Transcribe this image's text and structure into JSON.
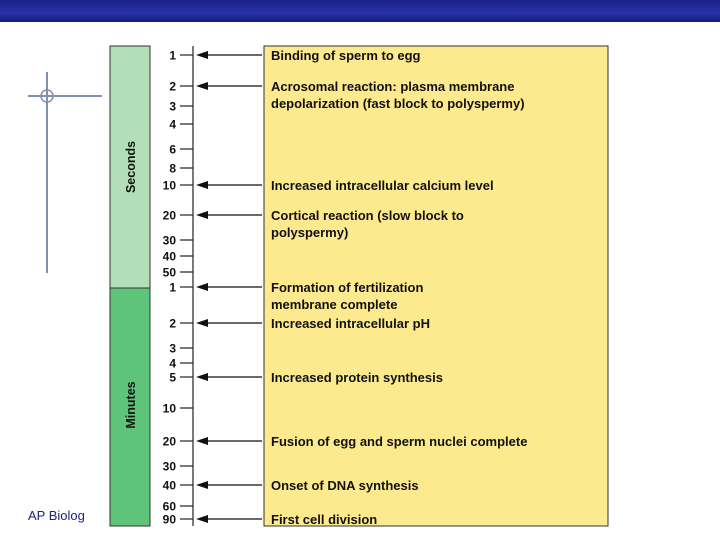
{
  "footer": {
    "label": "AP Biolog"
  },
  "header": {
    "bar_color": "#1f2699"
  },
  "colors": {
    "seconds_band": "#b3dfb8",
    "minutes_band": "#5ec47a",
    "events_panel": "#fde98e",
    "outline": "#333333",
    "footer_text": "#1a237e"
  },
  "timeline": {
    "seconds_label": "Seconds",
    "minutes_label": "Minutes",
    "ticks": [
      {
        "label": "1",
        "key": "s1"
      },
      {
        "label": "2",
        "key": "s2"
      },
      {
        "label": "3",
        "key": "s3"
      },
      {
        "label": "4",
        "key": "s4"
      },
      {
        "label": "6",
        "key": "s6"
      },
      {
        "label": "8",
        "key": "s8"
      },
      {
        "label": "10",
        "key": "s10"
      },
      {
        "label": "20",
        "key": "s20"
      },
      {
        "label": "30",
        "key": "s30"
      },
      {
        "label": "40",
        "key": "s40"
      },
      {
        "label": "50",
        "key": "s50"
      },
      {
        "label": "1",
        "key": "m1"
      },
      {
        "label": "2",
        "key": "m2"
      },
      {
        "label": "3",
        "key": "m3"
      },
      {
        "label": "4",
        "key": "m4"
      },
      {
        "label": "5",
        "key": "m5"
      },
      {
        "label": "10",
        "key": "m10"
      },
      {
        "label": "20",
        "key": "m20"
      },
      {
        "label": "30",
        "key": "m30"
      },
      {
        "label": "40",
        "key": "m40"
      },
      {
        "label": "60",
        "key": "m60"
      },
      {
        "label": "90",
        "key": "m90"
      }
    ],
    "events": [
      {
        "at": "s1",
        "lines": [
          "Binding of sperm to egg"
        ]
      },
      {
        "at": "s2",
        "lines": [
          "Acrosomal reaction: plasma membrane",
          "depolarization (fast block to polyspermy)"
        ]
      },
      {
        "at": "s10",
        "lines": [
          "Increased intracellular calcium level"
        ]
      },
      {
        "at": "s20",
        "lines": [
          "Cortical reaction (slow block to",
          "polyspermy)"
        ]
      },
      {
        "at": "m1",
        "lines": [
          "Formation of fertilization",
          "membrane complete"
        ]
      },
      {
        "at": "m2",
        "lines": [
          "Increased intracellular pH"
        ]
      },
      {
        "at": "m5",
        "lines": [
          "Increased protein synthesis"
        ]
      },
      {
        "at": "m20",
        "lines": [
          "Fusion of egg and sperm nuclei complete"
        ]
      },
      {
        "at": "m40",
        "lines": [
          "Onset of DNA synthesis"
        ]
      },
      {
        "at": "m90",
        "lines": [
          "First cell division"
        ]
      }
    ]
  }
}
